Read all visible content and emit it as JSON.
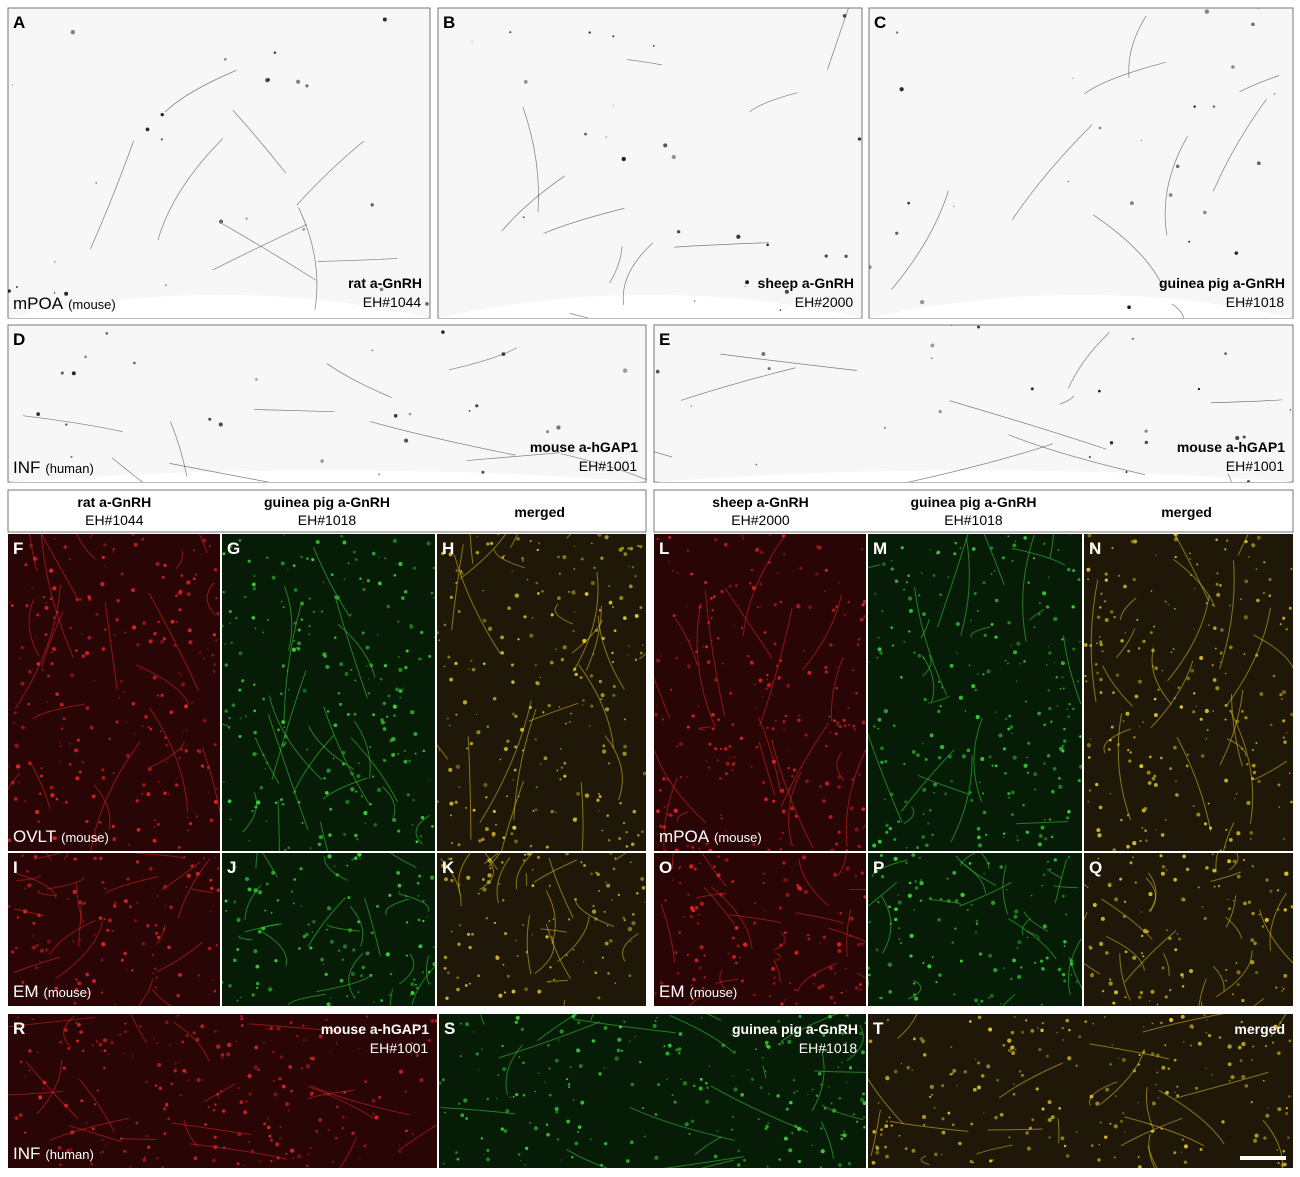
{
  "panels": [
    {
      "letter": "A",
      "label": "rat a-GnRH",
      "code": "EH#1044",
      "region": "mPOA",
      "region_note": "(mouse)"
    },
    {
      "letter": "B",
      "label": "sheep a-GnRH",
      "code": "EH#2000"
    },
    {
      "letter": "C",
      "label": "guinea pig a-GnRH",
      "code": "EH#1018"
    },
    {
      "letter": "D",
      "label": "mouse a-hGAP1",
      "code": "EH#1001",
      "region": "INF",
      "region_note": "(human)"
    },
    {
      "letter": "E",
      "label": "mouse a-hGAP1",
      "code": "EH#1001"
    },
    {
      "letter": "F",
      "region": "OVLT",
      "region_note": "(mouse)"
    },
    {
      "letter": "G"
    },
    {
      "letter": "H"
    },
    {
      "letter": "L",
      "region": "mPOA",
      "region_note": "(mouse)"
    },
    {
      "letter": "M"
    },
    {
      "letter": "N"
    },
    {
      "letter": "I",
      "region": "EM",
      "region_note": "(mouse)"
    },
    {
      "letter": "J"
    },
    {
      "letter": "K"
    },
    {
      "letter": "O",
      "region": "EM",
      "region_note": "(mouse)"
    },
    {
      "letter": "P"
    },
    {
      "letter": "Q"
    },
    {
      "letter": "R",
      "label": "mouse a-hGAP1",
      "code": "EH#1001",
      "region": "INF",
      "region_note": "(human)"
    },
    {
      "letter": "S",
      "label": "guinea pig a-GnRH",
      "code": "EH#1018"
    },
    {
      "letter": "T",
      "label": "merged"
    }
  ],
  "headers": [
    [
      {
        "label": "rat a-GnRH",
        "code": "EH#1044"
      },
      {
        "label": "guinea pig a-GnRH",
        "code": "EH#1018"
      },
      {
        "label": "merged"
      }
    ],
    [
      {
        "label": "sheep a-GnRH",
        "code": "EH#2000"
      },
      {
        "label": "guinea pig a-GnRH",
        "code": "EH#1018"
      },
      {
        "label": "merged"
      }
    ]
  ]
}
